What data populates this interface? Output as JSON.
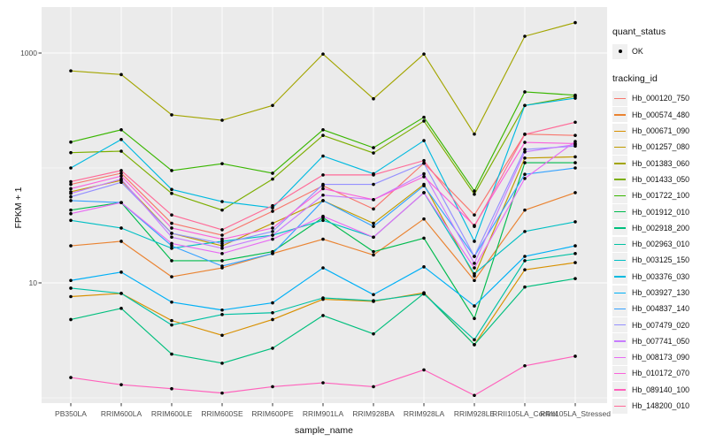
{
  "figure": {
    "background": "#FFFFFF",
    "panel_background": "#EBEBEB",
    "gridline_color": "#FFFFFF",
    "tick_color": "#333333",
    "point_color": "#000000",
    "axis_text_color": "#4D4D4D"
  },
  "axes": {
    "ylabel": "FPKM + 1",
    "xlabel": "sample_name",
    "y_ticks": [
      {
        "label": "1000",
        "value": 1000
      },
      {
        "label": "10",
        "value": 10
      }
    ]
  },
  "legend": {
    "quant_status_title": "quant_status",
    "quant_status_items": [
      {
        "label": "OK",
        "marker": "point"
      }
    ],
    "tracking_id_title": "tracking_id"
  },
  "chart_data": {
    "type": "line",
    "title": "",
    "xlabel": "sample_name",
    "ylabel": "FPKM + 1",
    "y_scale": "log10",
    "ylim": [
      0.9,
      2500
    ],
    "y_breaks": [
      10,
      1000
    ],
    "y_minor_breaks": [
      1,
      100
    ],
    "grid": true,
    "legend_position": "right",
    "marker": "black-point",
    "categories": [
      "PB350LA",
      "RRIM600LA",
      "RRIM600LE",
      "RRIM600SE",
      "RRIM600PE",
      "RRIM901LA",
      "RRIM928BA",
      "RRIM928LA",
      "RRIM928LE",
      "RRII105LA_Control",
      "RRII105LA_Stressed"
    ],
    "series": [
      {
        "name": "Hb_000120_750",
        "color": "#F8766D",
        "values": [
          72,
          90,
          33,
          26,
          42,
          70,
          44,
          110,
          39,
          197,
          192
        ]
      },
      {
        "name": "Hb_000574_480",
        "color": "#EA8331",
        "values": [
          21,
          23,
          11.3,
          13.5,
          18,
          24,
          17.5,
          36,
          10.5,
          43,
          61
        ]
      },
      {
        "name": "Hb_000671_090",
        "color": "#D89000",
        "values": [
          7.6,
          8.1,
          4.7,
          3.5,
          4.8,
          7.2,
          6.9,
          8.2,
          2.9,
          13,
          15
        ]
      },
      {
        "name": "Hb_001257_080",
        "color": "#C09B00",
        "values": [
          62,
          78,
          27,
          21,
          33,
          52,
          33,
          72,
          11.5,
          122,
          125
        ]
      },
      {
        "name": "Hb_001383_060",
        "color": "#A3A500",
        "values": [
          700,
          650,
          290,
          260,
          350,
          980,
          400,
          980,
          197,
          1400,
          1840
        ]
      },
      {
        "name": "Hb_001433_050",
        "color": "#7CAE00",
        "values": [
          136,
          140,
          60,
          43,
          80,
          192,
          135,
          256,
          59,
          350,
          420
        ]
      },
      {
        "name": "Hb_001722_100",
        "color": "#39B600",
        "values": [
          168,
          215,
          95,
          109,
          90,
          215,
          150,
          276,
          63,
          459,
          430
        ]
      },
      {
        "name": "Hb_001912_010",
        "color": "#00BB4E",
        "values": [
          43,
          50,
          15.6,
          15.6,
          18.7,
          37,
          18.7,
          24.5,
          4.9,
          111,
          111
        ]
      },
      {
        "name": "Hb_002918_200",
        "color": "#00BF7D",
        "values": [
          4.8,
          6.0,
          2.4,
          2.0,
          2.7,
          5.2,
          3.6,
          8.1,
          2.9,
          9.2,
          10.9
        ]
      },
      {
        "name": "Hb_002963_010",
        "color": "#00C1A3",
        "values": [
          9.0,
          8.1,
          4.3,
          5.3,
          5.5,
          7.4,
          7.0,
          8.0,
          3.2,
          15.6,
          18
        ]
      },
      {
        "name": "Hb_003125_150",
        "color": "#00BFC4",
        "values": [
          35,
          30,
          20,
          23,
          26,
          35,
          25,
          61,
          12,
          28,
          34
        ]
      },
      {
        "name": "Hb_003376_030",
        "color": "#00BAE0",
        "values": [
          100,
          177,
          65,
          51,
          45,
          127,
          89,
          173,
          23,
          350,
          405
        ]
      },
      {
        "name": "Hb_003927_130",
        "color": "#00B0F6",
        "values": [
          10.5,
          12.4,
          6.8,
          5.8,
          6.7,
          13.5,
          7.9,
          13.8,
          6.3,
          17,
          21
        ]
      },
      {
        "name": "Hb_004837_140",
        "color": "#35A2FF",
        "values": [
          52,
          50,
          21,
          14,
          18,
          52,
          31,
          70,
          17,
          88,
          100
        ]
      },
      {
        "name": "Hb_007479_020",
        "color": "#9590FF",
        "values": [
          56,
          75,
          27,
          22,
          28,
          72,
          72,
          110,
          17,
          145,
          155
        ]
      },
      {
        "name": "Hb_007741_050",
        "color": "#C77CFF",
        "values": [
          60,
          80,
          25,
          20,
          26,
          58,
          53,
          89,
          14.8,
          138,
          160
        ]
      },
      {
        "name": "Hb_008173_090",
        "color": "#E76BF3",
        "values": [
          40,
          50,
          22,
          18,
          24,
          38,
          25,
          61,
          13.5,
          81,
          170
        ]
      },
      {
        "name": "Hb_010172_070",
        "color": "#FA62DB",
        "values": [
          66,
          85,
          30,
          24,
          30,
          66,
          53,
          84,
          31.6,
          167,
          163
        ]
      },
      {
        "name": "Hb_089140_100",
        "color": "#FF62BC",
        "values": [
          1.5,
          1.3,
          1.2,
          1.1,
          1.25,
          1.35,
          1.25,
          1.75,
          1.05,
          1.9,
          2.3
        ]
      },
      {
        "name": "Hb_148200_010",
        "color": "#FF6A98",
        "values": [
          76,
          95,
          39,
          29,
          47,
          87,
          87,
          116,
          31,
          196,
          250
        ]
      }
    ]
  }
}
